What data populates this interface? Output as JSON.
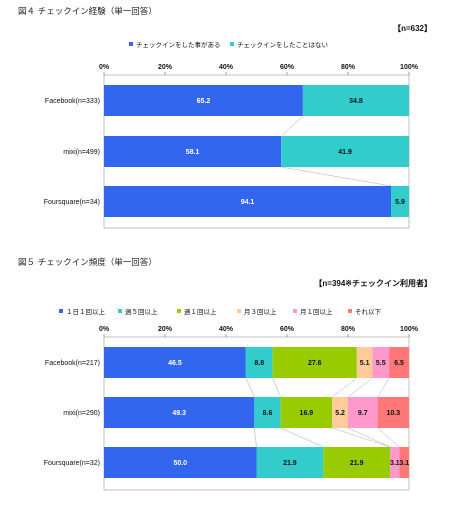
{
  "chart_data": [
    {
      "type": "bar",
      "orientation": "horizontal",
      "stacked": true,
      "title": "図４ チェックイン経験（単一回答）",
      "note": "【n=632】",
      "categories": [
        "Facebook(n=333)",
        "mixi(n=499)",
        "Foursquare(n=34)"
      ],
      "series": [
        {
          "name": "チェックインをした事がある",
          "color": "#3366ee",
          "values": [
            65.2,
            58.1,
            94.1
          ]
        },
        {
          "name": "チェックインをしたことはない",
          "color": "#33cccc",
          "values": [
            34.8,
            41.9,
            5.9
          ]
        }
      ],
      "xlim": [
        0,
        100
      ],
      "xticks": [
        "0%",
        "20%",
        "40%",
        "60%",
        "80%",
        "100%"
      ],
      "legend": "top-center"
    },
    {
      "type": "bar",
      "orientation": "horizontal",
      "stacked": true,
      "title": "図５ チェックイン頻度（単一回答）",
      "note": "【n=394※チェックイン利用者】",
      "categories": [
        "Facebook(n=217)",
        "mixi(n=290)",
        "Foursquare(n=32)"
      ],
      "series": [
        {
          "name": "１日１回以上",
          "color": "#3366ee",
          "values": [
            46.5,
            49.3,
            50.0
          ]
        },
        {
          "name": "週５回以上",
          "color": "#33cccc",
          "values": [
            8.8,
            8.6,
            21.9
          ]
        },
        {
          "name": "週１回以上",
          "color": "#99cc00",
          "values": [
            27.6,
            16.9,
            21.9
          ]
        },
        {
          "name": "月３回以上",
          "color": "#ffcc99",
          "values": [
            5.1,
            5.2,
            0
          ]
        },
        {
          "name": "月１回以上",
          "color": "#ff99cc",
          "values": [
            5.5,
            9.7,
            3.1
          ]
        },
        {
          "name": "それ以下",
          "color": "#ff7777",
          "values": [
            6.5,
            10.3,
            3.1
          ]
        }
      ],
      "xlim": [
        0,
        100
      ],
      "xticks": [
        "0%",
        "20%",
        "40%",
        "60%",
        "80%",
        "100%"
      ],
      "legend": "top-center"
    }
  ]
}
